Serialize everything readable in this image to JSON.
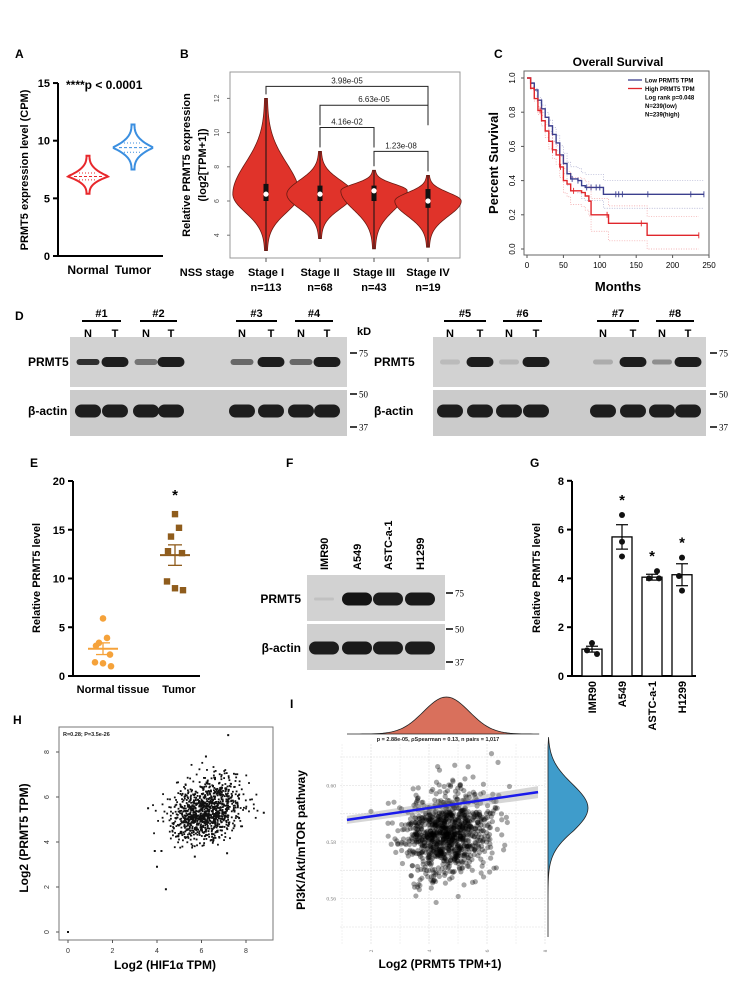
{
  "panel_labels": {
    "A": "A",
    "B": "B",
    "C": "C",
    "D": "D",
    "E": "E",
    "F": "F",
    "G": "G",
    "H": "H",
    "I": "I"
  },
  "chart_data": [
    {
      "panel": "A",
      "type": "violin",
      "ylabel": "PRMT5 expression level (CPM)",
      "ylim": [
        0,
        15
      ],
      "yticks": [
        "0",
        "5",
        "10",
        "15"
      ],
      "categories": [
        "Normal",
        "Tumor"
      ],
      "colors": [
        "#e8282c",
        "#3b8fe0"
      ],
      "violins": [
        {
          "min": 5.4,
          "max": 8.7,
          "median": 6.9,
          "q1": 6.6,
          "q3": 7.2
        },
        {
          "min": 7.5,
          "max": 11.4,
          "median": 9.4,
          "q1": 9.0,
          "q3": 9.8
        }
      ],
      "annotation": "****p < 0.0001"
    },
    {
      "panel": "B",
      "type": "violin",
      "ylabel": [
        "Relative PRMT5 expression",
        "(log2[TPM+1])"
      ],
      "ylim": [
        3,
        13.5
      ],
      "yticks": [
        "4",
        "6",
        "8",
        "10",
        "12"
      ],
      "xlabel": "NSS stage",
      "categories": [
        "Stage I",
        "Stage II",
        "Stage III",
        "Stage IV"
      ],
      "n_labels": [
        "n=113",
        "n=68",
        "n=43",
        "n=19"
      ],
      "color": "#e0332a",
      "violins": [
        {
          "min": 3.1,
          "max": 12.0,
          "median": 6.4,
          "q1": 6.0,
          "q3": 7.0
        },
        {
          "min": 3.8,
          "max": 8.9,
          "median": 6.4,
          "q1": 6.0,
          "q3": 6.9
        },
        {
          "min": 3.2,
          "max": 7.8,
          "median": 6.6,
          "q1": 6.0,
          "q3": 6.9
        },
        {
          "min": 3.3,
          "max": 7.5,
          "median": 6.0,
          "q1": 5.6,
          "q3": 6.7
        }
      ],
      "comparisons": [
        {
          "from": 0,
          "to": 3,
          "label": "3.98e-05",
          "y": 12.7
        },
        {
          "from": 1,
          "to": 3,
          "label": "6.63e-05",
          "y": 11.6
        },
        {
          "from": 1,
          "to": 2,
          "label": "4.16e-02",
          "y": 10.3
        },
        {
          "from": 2,
          "to": 3,
          "label": "1.23e-08",
          "y": 8.9
        }
      ]
    },
    {
      "panel": "C",
      "type": "line",
      "title": "Overall Survival",
      "xlabel": "Months",
      "ylabel": "Percent Survival",
      "xlim": [
        0,
        250
      ],
      "ylim": [
        0,
        1
      ],
      "xticks": [
        "0",
        "50",
        "100",
        "150",
        "200",
        "250"
      ],
      "yticks": [
        "0.0",
        "0.2",
        "0.4",
        "0.6",
        "0.8",
        "1.0"
      ],
      "legend": "top-right",
      "series": [
        {
          "name": "Low PRMT5 TPM",
          "color": "#3b3f8e",
          "points": [
            [
              0,
              1
            ],
            [
              5,
              0.97
            ],
            [
              10,
              0.93
            ],
            [
              15,
              0.87
            ],
            [
              20,
              0.82
            ],
            [
              25,
              0.77
            ],
            [
              30,
              0.72
            ],
            [
              35,
              0.67
            ],
            [
              40,
              0.62
            ],
            [
              45,
              0.55
            ],
            [
              50,
              0.5
            ],
            [
              55,
              0.44
            ],
            [
              60,
              0.41
            ],
            [
              70,
              0.4
            ],
            [
              75,
              0.37
            ],
            [
              80,
              0.36
            ],
            [
              105,
              0.32
            ],
            [
              243,
              0.32
            ]
          ],
          "censored": [
            62,
            70,
            82,
            88,
            95,
            100,
            122,
            126,
            131,
            166,
            225,
            243
          ]
        },
        {
          "name": "High PRMT5 TPM",
          "color": "#e0262b",
          "points": [
            [
              0,
              1
            ],
            [
              5,
              0.94
            ],
            [
              10,
              0.88
            ],
            [
              15,
              0.81
            ],
            [
              20,
              0.75
            ],
            [
              25,
              0.69
            ],
            [
              30,
              0.63
            ],
            [
              35,
              0.58
            ],
            [
              40,
              0.55
            ],
            [
              45,
              0.48
            ],
            [
              50,
              0.4
            ],
            [
              55,
              0.38
            ],
            [
              60,
              0.34
            ],
            [
              75,
              0.33
            ],
            [
              80,
              0.31
            ],
            [
              85,
              0.28
            ],
            [
              88,
              0.2
            ],
            [
              112,
              0.15
            ],
            [
              165,
              0.08
            ],
            [
              236,
              0.08
            ]
          ],
          "censored": [
            18,
            35,
            46,
            64,
            110,
            157,
            236
          ]
        }
      ],
      "legend_notes": [
        "Log rank p=0.048",
        "N=239(low)",
        "N=239(high)"
      ]
    },
    {
      "panel": "D",
      "type": "western-blot",
      "unit_label": "kD",
      "rows": [
        "PRMT5",
        "β-actin"
      ],
      "markers": [
        "75",
        "50",
        "37"
      ],
      "blots": [
        {
          "samples": [
            {
              "label": "#1",
              "lanes": [
                "N",
                "T"
              ]
            },
            {
              "label": "#2",
              "lanes": [
                "N",
                "T"
              ]
            },
            {
              "label": "#3",
              "lanes": [
                "N",
                "T"
              ]
            },
            {
              "label": "#4",
              "lanes": [
                "N",
                "T"
              ]
            }
          ],
          "prmt5_intensity": [
            0.85,
            0.95,
            0.55,
            0.95,
            0.6,
            0.95,
            0.6,
            0.95
          ],
          "actin_intensity": [
            0.95,
            0.95,
            0.95,
            0.95,
            0.95,
            0.95,
            0.95,
            0.95
          ]
        },
        {
          "samples": [
            {
              "label": "#5",
              "lanes": [
                "N",
                "T"
              ]
            },
            {
              "label": "#6",
              "lanes": [
                "N",
                "T"
              ]
            },
            {
              "label": "#7",
              "lanes": [
                "N",
                "T"
              ]
            },
            {
              "label": "#8",
              "lanes": [
                "N",
                "T"
              ]
            }
          ],
          "prmt5_intensity": [
            0.2,
            0.95,
            0.22,
            0.95,
            0.3,
            0.95,
            0.45,
            0.95
          ],
          "actin_intensity": [
            0.95,
            0.95,
            0.95,
            0.95,
            0.95,
            0.95,
            0.95,
            0.95
          ]
        }
      ]
    },
    {
      "panel": "E",
      "type": "scatter",
      "ylabel": "Relative PRMT5 level",
      "ylim": [
        0,
        20
      ],
      "yticks": [
        "0",
        "5",
        "10",
        "15",
        "20"
      ],
      "categories": [
        "Normal tissue",
        "Tumor"
      ],
      "colors": [
        "#f5a23a",
        "#8f5c1c"
      ],
      "groups": [
        {
          "values": [
            5.9,
            3.9,
            3.4,
            3.1,
            2.2,
            1.4,
            1.3,
            1.0
          ],
          "mean": 2.8,
          "sem": 0.6
        },
        {
          "values": [
            16.6,
            15.2,
            14.3,
            12.8,
            12.6,
            9.7,
            9.0,
            8.8
          ],
          "mean": 12.4,
          "sem": 1.05
        }
      ],
      "significance": [
        "",
        "*"
      ]
    },
    {
      "panel": "F",
      "type": "western-blot",
      "lanes": [
        "IMR90",
        "A549",
        "ASTC-a-1",
        "H1299"
      ],
      "rows": [
        "PRMT5",
        "β-actin"
      ],
      "markers": [
        "75",
        "50",
        "37"
      ],
      "prmt5_intensity": [
        0.15,
        1,
        0.95,
        0.97
      ],
      "actin_intensity": [
        0.95,
        0.97,
        0.95,
        0.95
      ]
    },
    {
      "panel": "G",
      "type": "bar",
      "ylabel": "Relative PRMT5 level",
      "ylim": [
        0,
        8
      ],
      "yticks": [
        "0",
        "2",
        "4",
        "6",
        "8"
      ],
      "categories": [
        "IMR90",
        "A549",
        "ASTC-a-1",
        "H1299"
      ],
      "values": [
        1.1,
        5.7,
        4.05,
        4.15
      ],
      "sem": [
        0.12,
        0.5,
        0.12,
        0.45
      ],
      "points": [
        [
          1.35,
          1.05,
          0.9
        ],
        [
          6.6,
          5.5,
          4.9
        ],
        [
          4.3,
          4.0,
          4.0
        ],
        [
          4.85,
          4.1,
          3.5
        ]
      ],
      "significance": [
        "",
        "*",
        "*",
        "*"
      ]
    },
    {
      "panel": "H",
      "type": "scatter",
      "xlabel": "Log2 (HIF1α TPM)",
      "ylabel": "Log2 (PRMT5 TPM)",
      "xlim": [
        -0.4,
        9.0
      ],
      "ylim": [
        -0.4,
        9.0
      ],
      "xticks": [
        "0",
        "2",
        "4",
        "6",
        "8"
      ],
      "yticks": [
        "0",
        "2",
        "4",
        "6",
        "8"
      ],
      "annotation": "R=0.28; P=3.5e-26",
      "point_cloud": {
        "n": 1100,
        "mean_x": 6.2,
        "mean_y": 5.4,
        "sd_x": 0.75,
        "sd_y": 0.7,
        "r": 0.28
      },
      "outliers": [
        [
          0,
          0
        ],
        [
          4.4,
          1.9
        ],
        [
          4.0,
          2.9
        ],
        [
          3.9,
          3.6
        ],
        [
          4.2,
          3.6
        ],
        [
          5.7,
          3.35
        ],
        [
          7.2,
          8.75
        ],
        [
          3.6,
          5.5
        ],
        [
          8.8,
          5.3
        ],
        [
          7.15,
          3.5
        ],
        [
          6.2,
          7.8
        ]
      ]
    },
    {
      "panel": "I",
      "type": "scatter",
      "xlabel": "Log2 (PRMT5 TPM+1)",
      "ylabel": "PI3K/Akt/mTOR pathway",
      "xticks": [
        "2",
        "4",
        "6",
        "8"
      ],
      "yticks": [
        "0.56",
        "0.58",
        "0.60"
      ],
      "annotation": "p = 2.88e-05, ρSpearman = 0.13, n pairs = 1,017",
      "point_cloud": {
        "n": 1017,
        "mean_x": 4.6,
        "mean_y": 0.5835,
        "sd_x": 0.75,
        "sd_y": 0.0075,
        "r": 0.13
      },
      "regression": [
        [
          1.17,
          0.5878
        ],
        [
          7.76,
          0.5976
        ]
      ],
      "regression_color": "#1a1aeb",
      "marginal_colors": {
        "x": "#d9705c",
        "y": "#3f9ccb"
      }
    }
  ]
}
